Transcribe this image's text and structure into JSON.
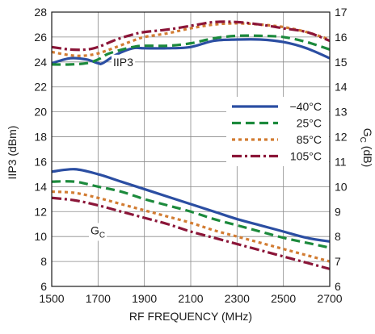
{
  "chart_data": {
    "type": "line",
    "xlabel": "RF FREQUENCY (MHz)",
    "ylabel_left": "IIP3 (dBm)",
    "ylabel_right": {
      "main": "G",
      "sub": "C",
      "suffix": " (dB)"
    },
    "xlim": [
      1500,
      2700
    ],
    "ylim_left": [
      6,
      28
    ],
    "ylim_right": [
      6,
      17
    ],
    "x_ticks": [
      "1500",
      "1700",
      "1900",
      "2100",
      "2300",
      "2500",
      "2700"
    ],
    "y_ticks_left": [
      "6",
      "8",
      "10",
      "12",
      "14",
      "16",
      "18",
      "20",
      "22",
      "24",
      "26",
      "28"
    ],
    "y_ticks_right": [
      "6",
      "7",
      "8",
      "9",
      "10",
      "11",
      "12",
      "13",
      "14",
      "15",
      "16",
      "17"
    ],
    "grid": true,
    "legend_position": "right",
    "annotations": [
      {
        "text": "IIP3",
        "x": 1800,
        "y": 24
      },
      {
        "text": "G",
        "sub": "C",
        "x": 1650,
        "y": 10.5
      }
    ],
    "series": [
      {
        "name": "−40°C",
        "color": "#2b4ea2",
        "dash": "",
        "iip3": {
          "x": [
            1500,
            1580,
            1650,
            1700,
            1720,
            1780,
            1850,
            1900,
            2000,
            2100,
            2200,
            2300,
            2400,
            2500,
            2600,
            2700
          ],
          "y": [
            23.9,
            24.3,
            24.2,
            23.9,
            23.9,
            24.6,
            25.1,
            25.1,
            25.1,
            25.2,
            25.7,
            25.8,
            25.8,
            25.6,
            25.1,
            24.3
          ]
        },
        "gc": {
          "x": [
            1500,
            1600,
            1700,
            1800,
            1900,
            2000,
            2100,
            2200,
            2300,
            2400,
            2500,
            2600,
            2700
          ],
          "y": [
            10.6,
            10.7,
            10.5,
            10.2,
            9.9,
            9.6,
            9.3,
            9.0,
            8.7,
            8.45,
            8.2,
            7.95,
            7.8
          ]
        }
      },
      {
        "name": "25°C",
        "color": "#1c8a3c",
        "dash": "11 6",
        "iip3": {
          "x": [
            1500,
            1580,
            1650,
            1700,
            1750,
            1850,
            1900,
            2000,
            2100,
            2200,
            2300,
            2400,
            2500,
            2600,
            2700
          ],
          "y": [
            23.8,
            23.8,
            23.9,
            24.2,
            24.7,
            25.2,
            25.3,
            25.3,
            25.5,
            25.9,
            26.1,
            26.1,
            26.0,
            25.6,
            25.0
          ]
        },
        "gc": {
          "x": [
            1500,
            1600,
            1700,
            1800,
            1900,
            2000,
            2100,
            2200,
            2300,
            2400,
            2500,
            2600,
            2700
          ],
          "y": [
            10.2,
            10.2,
            10.0,
            9.8,
            9.5,
            9.25,
            9.0,
            8.7,
            8.45,
            8.2,
            7.95,
            7.75,
            7.55
          ]
        }
      },
      {
        "name": "85°C",
        "color": "#d27c32",
        "dash": "4 4",
        "iip3": {
          "x": [
            1500,
            1600,
            1680,
            1750,
            1850,
            1900,
            2000,
            2100,
            2200,
            2300,
            2400,
            2500,
            2600,
            2700
          ],
          "y": [
            24.8,
            24.5,
            24.6,
            25.0,
            25.7,
            26.0,
            26.3,
            26.7,
            27.0,
            27.1,
            27.0,
            26.8,
            26.4,
            25.8
          ]
        },
        "gc": {
          "x": [
            1500,
            1600,
            1700,
            1800,
            1900,
            2000,
            2100,
            2200,
            2300,
            2400,
            2500,
            2600,
            2700
          ],
          "y": [
            9.8,
            9.75,
            9.55,
            9.3,
            9.05,
            8.8,
            8.55,
            8.25,
            8.0,
            7.75,
            7.5,
            7.25,
            7.0
          ]
        }
      },
      {
        "name": "105°C",
        "color": "#8b1538",
        "dash": "12 4 3 4",
        "iip3": {
          "x": [
            1500,
            1580,
            1650,
            1700,
            1780,
            1850,
            1900,
            2000,
            2100,
            2200,
            2300,
            2400,
            2500,
            2600,
            2700
          ],
          "y": [
            25.2,
            25.0,
            25.0,
            25.2,
            25.8,
            26.2,
            26.4,
            26.6,
            26.9,
            27.2,
            27.2,
            27.0,
            26.7,
            26.4,
            25.7
          ]
        },
        "gc": {
          "x": [
            1500,
            1600,
            1700,
            1800,
            1900,
            2000,
            2100,
            2200,
            2300,
            2400,
            2500,
            2600,
            2700
          ],
          "y": [
            9.55,
            9.45,
            9.25,
            9.0,
            8.75,
            8.5,
            8.2,
            7.95,
            7.7,
            7.45,
            7.2,
            6.95,
            6.7
          ]
        }
      }
    ]
  }
}
